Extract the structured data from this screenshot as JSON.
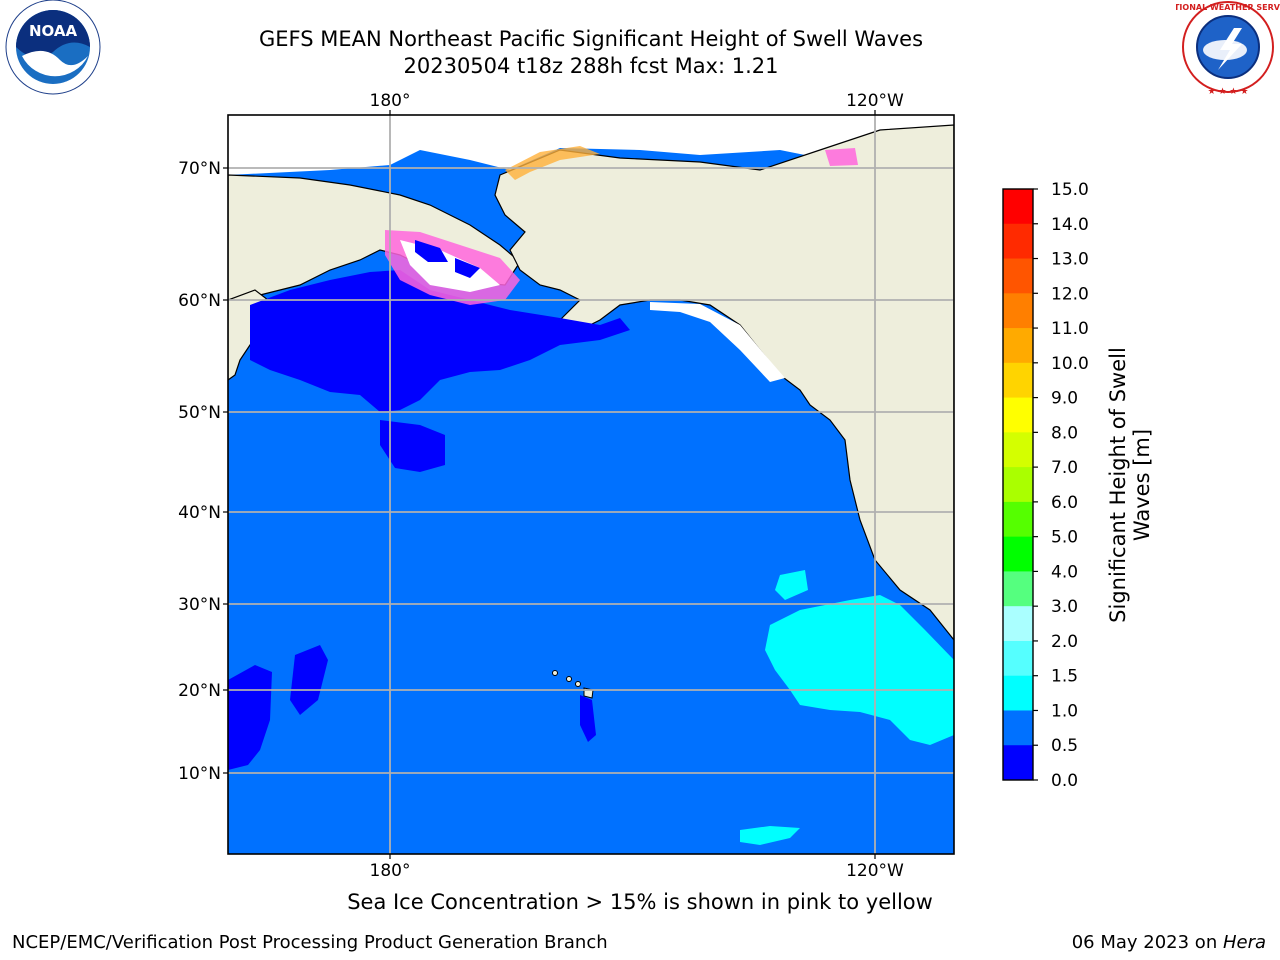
{
  "header": {
    "title_line1": "GEFS MEAN Northeast Pacific Significant Height of Swell Waves",
    "title_line2": "20230504 t18z 288h fcst   Max: 1.21"
  },
  "logos": {
    "left": {
      "name": "NOAA",
      "icon": "noaa-logo",
      "text": "NOAA",
      "ring_text": "NATIONAL OCEANIC AND ATMOSPHERIC ADMINISTRATION · U.S. DEPARTMENT OF COMMERCE"
    },
    "right": {
      "name": "National Weather Service",
      "icon": "nws-logo",
      "ring_text": "NATIONAL WEATHER SERVICE"
    }
  },
  "map": {
    "lon_labels_top": [
      "180°",
      "120°W"
    ],
    "lon_labels_bottom": [
      "180°",
      "120°W"
    ],
    "lat_labels": [
      "70°N",
      "60°N",
      "50°N",
      "40°N",
      "30°N",
      "20°N",
      "10°N"
    ],
    "colors": {
      "ocean_default": "#0071ff",
      "low_swell": "#0000ff",
      "mid_swell": "#00ffff",
      "land": "#eeeedc",
      "gridline": "#b0b0b0"
    }
  },
  "colorbar": {
    "title_line1": "Significant Height of Swell",
    "title_line2": "Waves [m]",
    "ticks": [
      "15.0",
      "14.0",
      "13.0",
      "12.0",
      "11.0",
      "10.0",
      "9.0",
      "8.0",
      "7.0",
      "6.0",
      "5.0",
      "4.0",
      "3.0",
      "2.0",
      "1.5",
      "1.0",
      "0.5",
      "0.0"
    ],
    "colors_top_to_bottom": [
      "#ff0000",
      "#ff2a00",
      "#ff5500",
      "#ff7f00",
      "#ffaa00",
      "#ffd400",
      "#ffff00",
      "#d4ff00",
      "#aaff00",
      "#55ff00",
      "#00ff00",
      "#55ff7f",
      "#aaffff",
      "#55ffff",
      "#00ffff",
      "#0071ff",
      "#0000ff"
    ]
  },
  "note": "Sea Ice Concentration > 15% is shown in pink to yellow",
  "footer": {
    "left": "NCEP/EMC/Verification Post Processing Product Generation Branch",
    "right_prefix": "06 May 2023 on ",
    "right_host": "Hera"
  }
}
